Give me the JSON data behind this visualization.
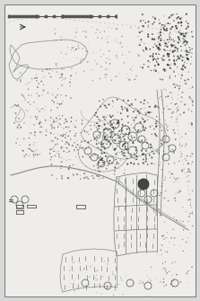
{
  "bg_color": "#d8d8d8",
  "map_bg": "#f0efec",
  "inner_bg": "#eeede9",
  "border_color": "#888888",
  "line_color": "#888888",
  "thin_line": "#aaaaaa",
  "dot_color": "#555555",
  "dark_dot": "#333333",
  "figsize": [
    2.23,
    3.35
  ],
  "dpi": 100
}
